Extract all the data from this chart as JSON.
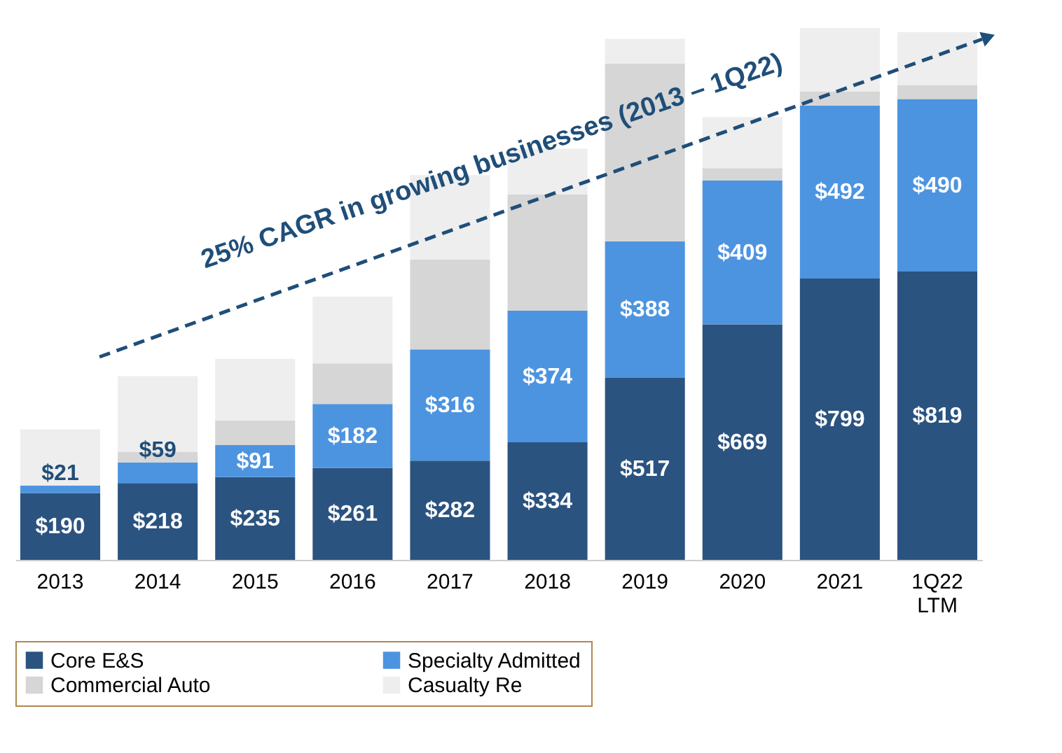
{
  "chart_data": {
    "type": "bar",
    "stacked": true,
    "categories": [
      "2013",
      "2014",
      "2015",
      "2016",
      "2017",
      "2018",
      "2019",
      "2020",
      "2021",
      "1Q22 LTM"
    ],
    "series": [
      {
        "name": "Core E&S",
        "color": "#2b5380",
        "values": [
          190,
          218,
          235,
          261,
          282,
          334,
          517,
          669,
          799,
          819
        ],
        "value_labels": [
          "$190",
          "$218",
          "$235",
          "$261",
          "$282",
          "$334",
          "$517",
          "$669",
          "$799",
          "$819"
        ]
      },
      {
        "name": "Specialty Admitted",
        "color": "#4d94e0",
        "values": [
          21,
          59,
          91,
          182,
          316,
          374,
          388,
          409,
          492,
          490
        ],
        "value_labels": [
          "$21",
          "$59",
          "$91",
          "$182",
          "$316",
          "$374",
          "$388",
          "$409",
          "$492",
          "$490"
        ]
      },
      {
        "name": "Commercial Auto",
        "color": "#d6d6d6",
        "values": [
          0,
          30,
          70,
          115,
          255,
          330,
          505,
          35,
          40,
          40
        ]
      },
      {
        "name": "Casualty Re",
        "color": "#eeeeee",
        "values": [
          160,
          215,
          175,
          190,
          240,
          130,
          70,
          145,
          180,
          150
        ]
      }
    ],
    "annotations": [
      "25% CAGR in growing businesses (2013 – 1Q22)"
    ],
    "legend": "bottom",
    "grid": false
  }
}
